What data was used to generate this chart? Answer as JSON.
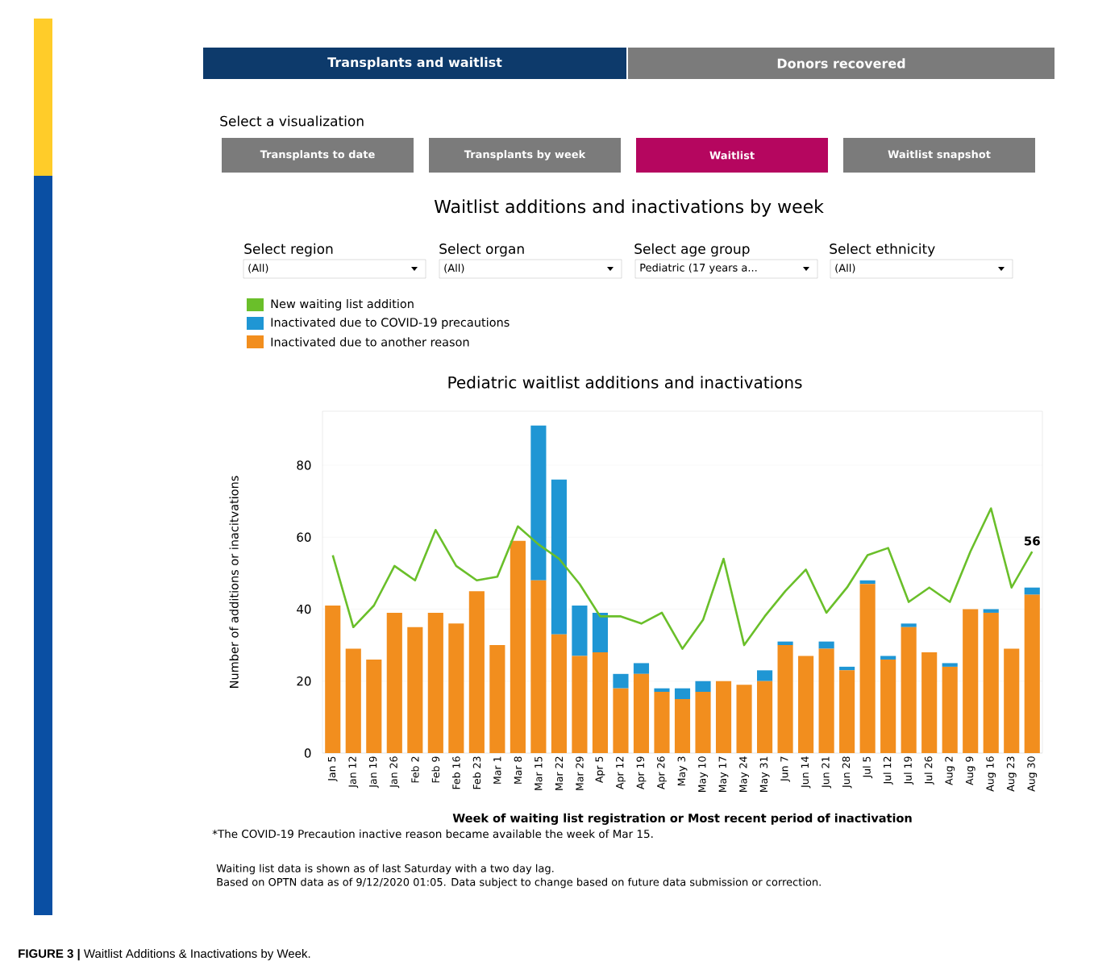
{
  "chart_data": {
    "type": "bar",
    "title": "Pediatric waitlist additions and inactivations",
    "xlabel": "Week of waiting list registration or Most recent period of inactivation",
    "ylabel": "Number of additions or inacitvations",
    "categories": [
      "Jan 5",
      "Jan 12",
      "Jan 19",
      "Jan 26",
      "Feb 2",
      "Feb 9",
      "Feb 16",
      "Feb 23",
      "Mar 1",
      "Mar 8",
      "Mar 15",
      "Mar 22",
      "Mar 29",
      "Apr 5",
      "Apr 12",
      "Apr 19",
      "Apr 26",
      "May 3",
      "May 10",
      "May 17",
      "May 24",
      "May 31",
      "Jun 7",
      "Jun 14",
      "Jun 21",
      "Jun 28",
      "Jul 5",
      "Jul 12",
      "Jul 19",
      "Jul 26",
      "Aug 2",
      "Aug 9",
      "Aug 16",
      "Aug 23",
      "Aug 30"
    ],
    "series": [
      {
        "name": "New waiting list addition",
        "type": "line",
        "color": "#6abf2a",
        "values": [
          55,
          35,
          41,
          52,
          48,
          62,
          52,
          48,
          49,
          63,
          58,
          54,
          47,
          38,
          38,
          36,
          39,
          29,
          37,
          54,
          30,
          38,
          45,
          51,
          39,
          46,
          55,
          57,
          42,
          46,
          42,
          56,
          68,
          46,
          56
        ],
        "value_labels": [
          null,
          null,
          null,
          null,
          null,
          null,
          null,
          null,
          null,
          null,
          null,
          null,
          null,
          null,
          null,
          null,
          null,
          null,
          null,
          null,
          null,
          null,
          null,
          null,
          null,
          null,
          null,
          null,
          null,
          null,
          null,
          null,
          null,
          null,
          "56"
        ]
      },
      {
        "name": "Inactivated due to another reason",
        "color": "#f28e1e",
        "values": [
          41,
          29,
          26,
          39,
          35,
          39,
          36,
          45,
          30,
          59,
          48,
          33,
          27,
          28,
          18,
          22,
          17,
          15,
          17,
          20,
          19,
          20,
          30,
          27,
          29,
          23,
          47,
          26,
          35,
          28,
          24,
          40,
          39,
          29,
          44
        ]
      },
      {
        "name": "Inactivated due to COVID-19 precautions",
        "color": "#1f96d4",
        "values": [
          0,
          0,
          0,
          0,
          0,
          0,
          0,
          0,
          0,
          0,
          43,
          43,
          14,
          11,
          4,
          3,
          1,
          3,
          3,
          0,
          0,
          3,
          1,
          0,
          2,
          1,
          1,
          1,
          1,
          0,
          1,
          0,
          1,
          0,
          2
        ]
      }
    ],
    "stacked": true,
    "ylim": [
      0,
      95
    ],
    "yticks": [
      0,
      20,
      40,
      60,
      80
    ],
    "grid": "y",
    "legend": "top left",
    "annotations": [
      "Transplants and waitlist",
      "Donors recovered",
      "Select a visualization",
      "Transplants to date",
      "Transplants by week",
      "Waitlist",
      "Waitlist snapshot",
      "Waitlist additions and inactivations by week",
      "Select region",
      "(All)",
      "Select organ",
      "(All)",
      "Select age group",
      "Pediatric (17 years a...",
      "Select ethnicity",
      "(All)",
      "*The COVID-19 Precaution inactive reason became available the week of Mar 15.",
      "Waiting list data is shown as of last Saturday with a two day lag.",
      "Based on OPTN data as of 9/12/2020 01:05. Data subject to change based on future data submission or correction.",
      "**FIGURE 3 |** Waitlist Additions & Inactivations by Week."
    ]
  }
}
